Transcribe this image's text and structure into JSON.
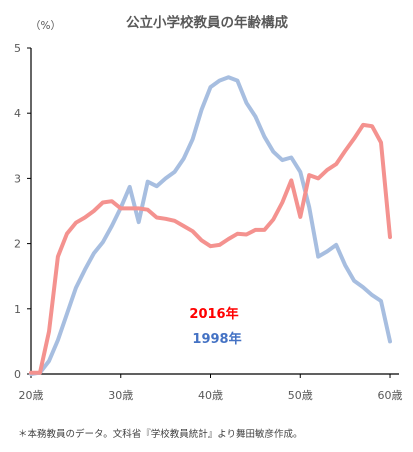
{
  "chart_data": {
    "type": "line",
    "title": "公立小学校教員の年齢構成",
    "y_unit": "（%）",
    "xlabel": "",
    "ylabel": "",
    "xlim": [
      20,
      61
    ],
    "ylim": [
      0,
      5
    ],
    "x_ticks": [
      20,
      30,
      40,
      50,
      60
    ],
    "x_tick_labels": [
      "20歳",
      "30歳",
      "40歳",
      "50歳",
      "60歳"
    ],
    "y_ticks": [
      0,
      1,
      2,
      3,
      4,
      5
    ],
    "y_tick_labels": [
      "0",
      "1",
      "2",
      "3",
      "4",
      "5"
    ],
    "grid": false,
    "series": [
      {
        "name": "2016年",
        "color": "#f4928f",
        "label_color": "#ff0000",
        "x": [
          20,
          21,
          22,
          23,
          24,
          25,
          26,
          27,
          28,
          29,
          30,
          31,
          32,
          33,
          34,
          35,
          36,
          37,
          38,
          39,
          40,
          41,
          42,
          43,
          44,
          45,
          46,
          47,
          48,
          49,
          50,
          51,
          52,
          53,
          54,
          55,
          56,
          57,
          58,
          59,
          60
        ],
        "values": [
          0.02,
          0.02,
          0.65,
          1.8,
          2.15,
          2.32,
          2.4,
          2.5,
          2.63,
          2.65,
          2.54,
          2.54,
          2.54,
          2.52,
          2.4,
          2.38,
          2.35,
          2.27,
          2.19,
          2.05,
          1.96,
          1.98,
          2.07,
          2.15,
          2.14,
          2.21,
          2.21,
          2.37,
          2.63,
          2.97,
          2.41,
          3.05,
          3.0,
          3.13,
          3.22,
          3.42,
          3.61,
          3.82,
          3.8,
          3.55,
          2.1
        ]
      },
      {
        "name": "1998年",
        "color": "#a7bee0",
        "label_color": "#4472c4",
        "x": [
          20,
          21,
          22,
          23,
          24,
          25,
          26,
          27,
          28,
          29,
          30,
          31,
          32,
          33,
          34,
          35,
          36,
          37,
          38,
          39,
          40,
          41,
          42,
          43,
          44,
          45,
          46,
          47,
          48,
          49,
          50,
          51,
          52,
          53,
          54,
          55,
          56,
          57,
          58,
          59,
          60
        ],
        "values": [
          0.0,
          0.02,
          0.2,
          0.52,
          0.92,
          1.32,
          1.6,
          1.85,
          2.02,
          2.27,
          2.55,
          2.87,
          2.33,
          2.95,
          2.88,
          3.0,
          3.1,
          3.3,
          3.6,
          4.05,
          4.4,
          4.5,
          4.55,
          4.5,
          4.16,
          3.95,
          3.64,
          3.41,
          3.28,
          3.32,
          3.1,
          2.56,
          1.8,
          1.88,
          1.98,
          1.67,
          1.43,
          1.33,
          1.21,
          1.12,
          0.5
        ]
      }
    ]
  },
  "labels": {
    "series_2016": "2016年",
    "series_1998": "1998年"
  },
  "note": "＊本務教員のデータ。文科省『学校教員統計』より舞田敏彦作成。"
}
